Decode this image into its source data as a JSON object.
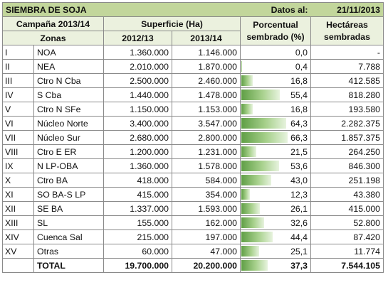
{
  "title": {
    "left": "SIEMBRA DE SOJA",
    "date_label": "Datos al:",
    "date_value": "21/11/2013"
  },
  "header": {
    "campaign": "Campaña 2013/14",
    "surface": "Superficie (Ha)",
    "percent_line1": "Porcentual",
    "percent_line2": "sembrado (%)",
    "hectares_line1": "Hectáreas",
    "hectares_line2": "sembradas",
    "zones": "Zonas",
    "year1": "2012/13",
    "year2": "2013/14"
  },
  "rows": [
    {
      "roman": "I",
      "zone": "NOA",
      "y2012": "1.360.000",
      "y2013": "1.146.000",
      "pct": "0,0",
      "pct_value": 0.0,
      "ha": "-"
    },
    {
      "roman": "II",
      "zone": "NEA",
      "y2012": "2.010.000",
      "y2013": "1.870.000",
      "pct": "0,4",
      "pct_value": 0.4,
      "ha": "7.788"
    },
    {
      "roman": "III",
      "zone": "Ctro N Cba",
      "y2012": "2.500.000",
      "y2013": "2.460.000",
      "pct": "16,8",
      "pct_value": 16.8,
      "ha": "412.585"
    },
    {
      "roman": "IV",
      "zone": "S Cba",
      "y2012": "1.440.000",
      "y2013": "1.478.000",
      "pct": "55,4",
      "pct_value": 55.4,
      "ha": "818.280"
    },
    {
      "roman": "V",
      "zone": "Ctro N SFe",
      "y2012": "1.150.000",
      "y2013": "1.153.000",
      "pct": "16,8",
      "pct_value": 16.8,
      "ha": "193.580"
    },
    {
      "roman": "VI",
      "zone": "Núcleo Norte",
      "y2012": "3.400.000",
      "y2013": "3.547.000",
      "pct": "64,3",
      "pct_value": 64.3,
      "ha": "2.282.375"
    },
    {
      "roman": "VII",
      "zone": "Núcleo Sur",
      "y2012": "2.680.000",
      "y2013": "2.800.000",
      "pct": "66,3",
      "pct_value": 66.3,
      "ha": "1.857.375"
    },
    {
      "roman": "VIII",
      "zone": "Ctro E ER",
      "y2012": "1.200.000",
      "y2013": "1.231.000",
      "pct": "21,5",
      "pct_value": 21.5,
      "ha": "264.250"
    },
    {
      "roman": "IX",
      "zone": "N LP-OBA",
      "y2012": "1.360.000",
      "y2013": "1.578.000",
      "pct": "53,6",
      "pct_value": 53.6,
      "ha": "846.300"
    },
    {
      "roman": "X",
      "zone": "Ctro BA",
      "y2012": "418.000",
      "y2013": "584.000",
      "pct": "43,0",
      "pct_value": 43.0,
      "ha": "251.198"
    },
    {
      "roman": "XI",
      "zone": "SO BA-S LP",
      "y2012": "415.000",
      "y2013": "354.000",
      "pct": "12,3",
      "pct_value": 12.3,
      "ha": "43.380"
    },
    {
      "roman": "XII",
      "zone": "SE BA",
      "y2012": "1.337.000",
      "y2013": "1.593.000",
      "pct": "26,1",
      "pct_value": 26.1,
      "ha": "415.000"
    },
    {
      "roman": "XIII",
      "zone": "SL",
      "y2012": "155.000",
      "y2013": "162.000",
      "pct": "32,6",
      "pct_value": 32.6,
      "ha": "52.800"
    },
    {
      "roman": "XIV",
      "zone": "Cuenca Sal",
      "y2012": "215.000",
      "y2013": "197.000",
      "pct": "44,4",
      "pct_value": 44.4,
      "ha": "87.420"
    },
    {
      "roman": "XV",
      "zone": "Otras",
      "y2012": "60.000",
      "y2013": "47.000",
      "pct": "25,1",
      "pct_value": 25.1,
      "ha": "11.774"
    }
  ],
  "total": {
    "label": "TOTAL",
    "y2012": "19.700.000",
    "y2013": "20.200.000",
    "pct": "37,3",
    "pct_value": 37.3,
    "ha": "7.544.105"
  },
  "colors": {
    "title_bg": "#c2d69b",
    "header_bg": "#ebf1de",
    "bar": "#5f9e45"
  }
}
